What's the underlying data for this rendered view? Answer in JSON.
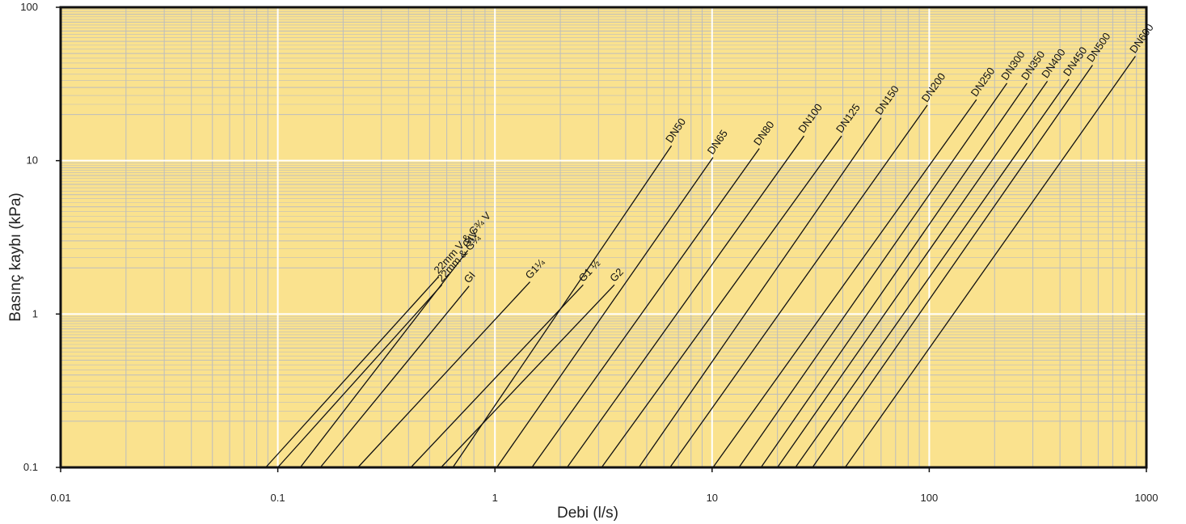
{
  "chart_data": {
    "type": "line",
    "title": "",
    "xlabel": "Debi (l/s)",
    "ylabel": "Basınç kaybı (kPa)",
    "xscale": "log",
    "yscale": "log",
    "xlim": [
      0.01,
      1000
    ],
    "ylim": [
      0.1,
      100
    ],
    "grid": true,
    "legend": "labels at line ends",
    "plot_background": "#FAE28E",
    "minor_grid_color": "#BDBDBD",
    "major_grid_color": "#FFFFFF",
    "line_color": "#111111",
    "x_ticks": [
      "0.01",
      "0.1",
      "1",
      "10",
      "100",
      "1000"
    ],
    "y_ticks": [
      "0.1",
      "1",
      "10",
      "100"
    ],
    "series": [
      {
        "name": "22mm V & G¾ V",
        "points": [
          [
            0.088,
            0.1
          ],
          [
            0.55,
            1.75
          ]
        ]
      },
      {
        "name": "22mm & G¾",
        "points": [
          [
            0.1,
            0.1
          ],
          [
            0.57,
            1.55
          ]
        ]
      },
      {
        "name": "GIV",
        "points": [
          [
            0.127,
            0.1
          ],
          [
            0.75,
            2.6
          ]
        ]
      },
      {
        "name": "GI",
        "points": [
          [
            0.157,
            0.1
          ],
          [
            0.76,
            1.52
          ]
        ]
      },
      {
        "name": "G1¼",
        "points": [
          [
            0.234,
            0.1
          ],
          [
            1.45,
            1.62
          ]
        ]
      },
      {
        "name": "G1 ½",
        "points": [
          [
            0.41,
            0.1
          ],
          [
            2.55,
            1.55
          ]
        ]
      },
      {
        "name": "G2",
        "points": [
          [
            0.565,
            0.1
          ],
          [
            3.55,
            1.55
          ]
        ]
      },
      {
        "name": "DN50",
        "points": [
          [
            0.64,
            0.1
          ],
          [
            6.5,
            12.5
          ]
        ]
      },
      {
        "name": "DN65",
        "points": [
          [
            1.02,
            0.1
          ],
          [
            10.1,
            10.5
          ]
        ]
      },
      {
        "name": "DN80",
        "points": [
          [
            1.48,
            0.1
          ],
          [
            16.5,
            12.0
          ]
        ]
      },
      {
        "name": "DN100",
        "points": [
          [
            2.15,
            0.1
          ],
          [
            26.5,
            14.5
          ]
        ]
      },
      {
        "name": "DN125",
        "points": [
          [
            3.1,
            0.1
          ],
          [
            39.5,
            14.5
          ]
        ]
      },
      {
        "name": "DN150",
        "points": [
          [
            4.6,
            0.1
          ],
          [
            60.0,
            19.0
          ]
        ]
      },
      {
        "name": "DN200",
        "points": [
          [
            6.4,
            0.1
          ],
          [
            98.0,
            23.0
          ]
        ]
      },
      {
        "name": "DN250",
        "points": [
          [
            10.1,
            0.1
          ],
          [
            165.0,
            25.0
          ]
        ]
      },
      {
        "name": "DN300",
        "points": [
          [
            13.3,
            0.1
          ],
          [
            228.0,
            32.0
          ]
        ]
      },
      {
        "name": "DN350",
        "points": [
          [
            16.8,
            0.1
          ],
          [
            282.0,
            32.0
          ]
        ]
      },
      {
        "name": "DN400",
        "points": [
          [
            20.0,
            0.1
          ],
          [
            350.0,
            33.0
          ]
        ]
      },
      {
        "name": "DN450",
        "points": [
          [
            24.2,
            0.1
          ],
          [
            440.0,
            34.0
          ]
        ]
      },
      {
        "name": "DN500",
        "points": [
          [
            29.0,
            0.1
          ],
          [
            565.0,
            42.0
          ]
        ]
      },
      {
        "name": "DN600",
        "points": [
          [
            41.0,
            0.1
          ],
          [
            890.0,
            48.0
          ]
        ]
      }
    ]
  }
}
